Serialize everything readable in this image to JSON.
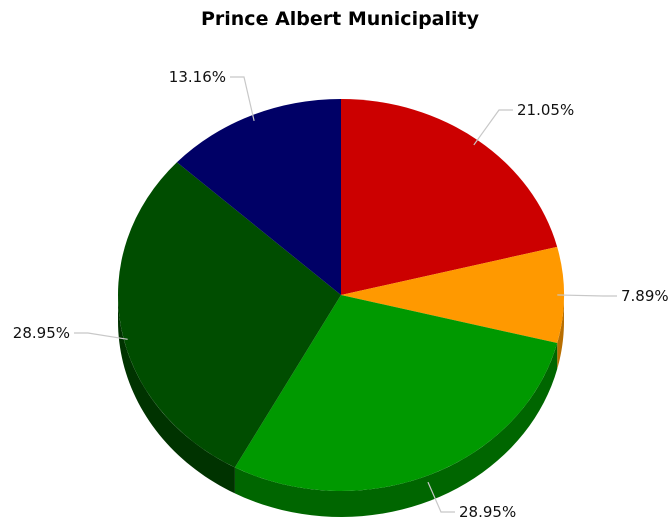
{
  "chart_data": {
    "type": "pie",
    "title": "Prince Albert Municipality",
    "slices": [
      {
        "label": "21.05%",
        "value": 21.05,
        "color": "#cc0000",
        "side_color": "#8a0000"
      },
      {
        "label": "7.89%",
        "value": 7.89,
        "color": "#ff9900",
        "side_color": "#b86e00"
      },
      {
        "label": "28.95%",
        "value": 28.95,
        "color": "#009900",
        "side_color": "#006600"
      },
      {
        "label": "28.95%",
        "value": 28.95,
        "color": "#004d00",
        "side_color": "#003300"
      },
      {
        "label": "13.16%",
        "value": 13.16,
        "color": "#000066",
        "side_color": "#00003d"
      }
    ],
    "start": "top",
    "direction": "clockwise",
    "legend": "none"
  }
}
